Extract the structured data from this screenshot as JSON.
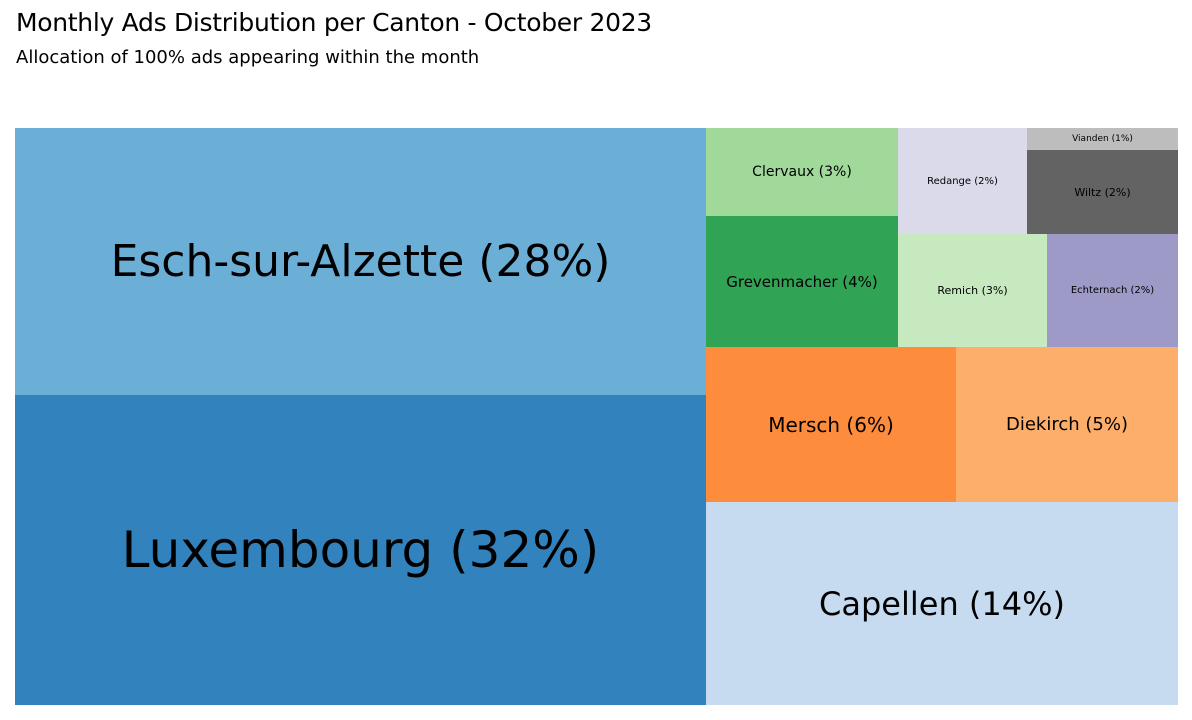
{
  "title": "Monthly Ads Distribution per Canton - October 2023",
  "subtitle": "Allocation of 100% ads appearing within the month",
  "chart_data": {
    "type": "treemap",
    "title": "Monthly Ads Distribution per Canton - October 2023",
    "subtitle": "Allocation of 100% ads appearing within the month",
    "items": [
      {
        "name": "Luxembourg",
        "value": 32,
        "label": "Luxembourg (32%)",
        "color": "#3182bd"
      },
      {
        "name": "Esch-sur-Alzette",
        "value": 28,
        "label": "Esch-sur-Alzette (28%)",
        "color": "#6baed6"
      },
      {
        "name": "Capellen",
        "value": 14,
        "label": "Capellen (14%)",
        "color": "#c6dbef"
      },
      {
        "name": "Mersch",
        "value": 6,
        "label": "Mersch (6%)",
        "color": "#fd8d3c"
      },
      {
        "name": "Diekirch",
        "value": 5,
        "label": "Diekirch (5%)",
        "color": "#fdae6b"
      },
      {
        "name": "Grevenmacher",
        "value": 4,
        "label": "Grevenmacher (4%)",
        "color": "#31a354"
      },
      {
        "name": "Clervaux",
        "value": 3,
        "label": "Clervaux (3%)",
        "color": "#a1d99b"
      },
      {
        "name": "Remich",
        "value": 3,
        "label": "Remich (3%)",
        "color": "#c7e9c0"
      },
      {
        "name": "Redange",
        "value": 2,
        "label": "Redange (2%)",
        "color": "#dadaeb"
      },
      {
        "name": "Echternach",
        "value": 2,
        "label": "Echternach (2%)",
        "color": "#9e9ac8"
      },
      {
        "name": "Wiltz",
        "value": 2,
        "label": "Wiltz (2%)",
        "color": "#636363"
      },
      {
        "name": "Vianden",
        "value": 1,
        "label": "Vianden (1%)",
        "color": "#bdbdbd"
      }
    ]
  }
}
